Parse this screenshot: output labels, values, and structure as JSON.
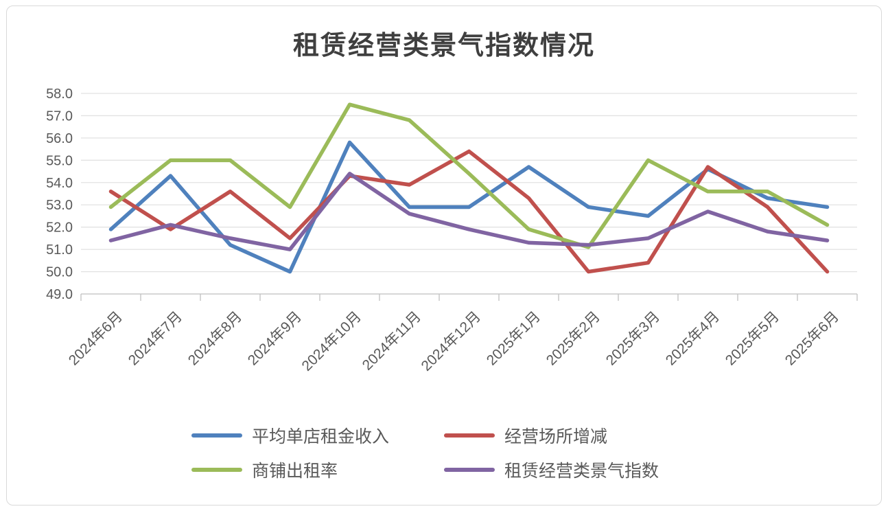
{
  "title": "租赁经营类景气指数情况",
  "chart_data": {
    "type": "line",
    "title": "租赁经营类景气指数情况",
    "categories": [
      "2024年6月",
      "2024年7月",
      "2024年8月",
      "2024年9月",
      "2024年10月",
      "2024年11月",
      "2024年12月",
      "2025年1月",
      "2025年2月",
      "2025年3月",
      "2025年4月",
      "2025年5月",
      "2025年6月"
    ],
    "series": [
      {
        "name": "平均单店租金收入",
        "color": "#4F81BD",
        "values": [
          51.9,
          54.3,
          51.2,
          50.0,
          55.8,
          52.9,
          52.9,
          54.7,
          52.9,
          52.5,
          54.6,
          53.3,
          52.9
        ]
      },
      {
        "name": "经营场所增减",
        "color": "#C0504D",
        "values": [
          53.6,
          51.9,
          53.6,
          51.5,
          54.3,
          53.9,
          55.4,
          53.3,
          50.0,
          50.4,
          54.7,
          52.9,
          50.0
        ]
      },
      {
        "name": "商铺出租率",
        "color": "#9BBB59",
        "values": [
          52.9,
          55.0,
          55.0,
          52.9,
          57.5,
          56.8,
          54.4,
          51.9,
          51.1,
          55.0,
          53.6,
          53.6,
          52.1
        ]
      },
      {
        "name": "租赁经营类景气指数",
        "color": "#8064A2",
        "values": [
          51.4,
          52.1,
          51.5,
          51.0,
          54.4,
          52.6,
          51.9,
          51.3,
          51.2,
          51.5,
          52.7,
          51.8,
          51.4
        ]
      }
    ],
    "xlabel": "",
    "ylabel": "",
    "ylim": [
      49.0,
      58.0
    ],
    "ytick_labels": [
      "58.0",
      "57.0",
      "56.0",
      "55.0",
      "54.0",
      "53.0",
      "52.0",
      "51.0",
      "50.0",
      "49.0"
    ],
    "grid": true,
    "legend_position": "bottom",
    "legend_rows": [
      [
        "平均单店租金收入",
        "经营场所增减"
      ],
      [
        "商铺出租率",
        "租赁经营类景气指数"
      ]
    ]
  },
  "colors": {
    "gridline": "#e2e2e2",
    "axis_line": "#bfbfbf",
    "tick_label": "#595959",
    "title_text": "#3f3f3f",
    "legend_text": "#595959",
    "card_border": "#d9d9d9"
  }
}
